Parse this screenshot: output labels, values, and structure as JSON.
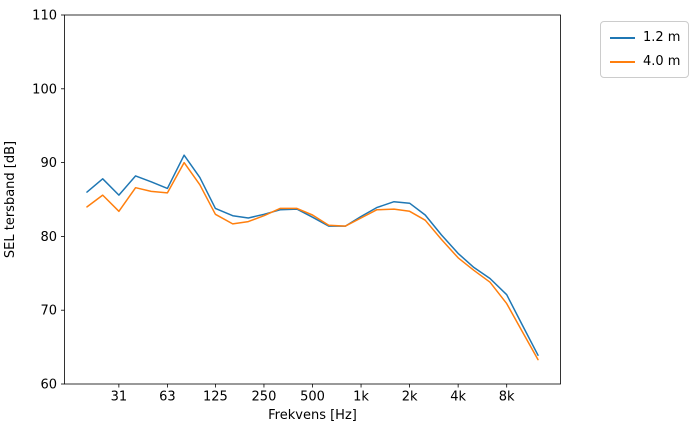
{
  "figure": {
    "background": "#ffffff"
  },
  "legend": {
    "items": [
      {
        "label": "1.2 m",
        "color": "#1f77b4"
      },
      {
        "label": "4.0 m",
        "color": "#ff7f0e"
      }
    ]
  },
  "chart_data": {
    "type": "line",
    "title": "",
    "xlabel": "Frekvens [Hz]",
    "ylabel": "SEL tersband [dB]",
    "x_scale": "log",
    "grid": false,
    "legend_position": "outside upper right",
    "ylim": [
      60,
      110
    ],
    "yticks": [
      60,
      70,
      80,
      90,
      100,
      110
    ],
    "xticks": [
      {
        "value": 31.5,
        "label": "31"
      },
      {
        "value": 63,
        "label": "63"
      },
      {
        "value": 125,
        "label": "125"
      },
      {
        "value": 250,
        "label": "250"
      },
      {
        "value": 500,
        "label": "500"
      },
      {
        "value": 1000,
        "label": "1k"
      },
      {
        "value": 2000,
        "label": "2k"
      },
      {
        "value": 4000,
        "label": "4k"
      },
      {
        "value": 8000,
        "label": "8k"
      }
    ],
    "x": [
      20,
      25,
      31.5,
      40,
      50,
      63,
      80,
      100,
      125,
      160,
      200,
      250,
      315,
      400,
      500,
      630,
      800,
      1000,
      1250,
      1600,
      2000,
      2500,
      3150,
      4000,
      5000,
      6300,
      8000,
      10000,
      12500
    ],
    "series": [
      {
        "name": "1.2 m",
        "color": "#1f77b4",
        "values": [
          86.0,
          87.8,
          85.6,
          88.2,
          87.4,
          86.5,
          91.0,
          88.0,
          83.8,
          82.8,
          82.5,
          83.0,
          83.6,
          83.7,
          82.6,
          81.4,
          81.4,
          82.7,
          83.9,
          84.7,
          84.5,
          82.9,
          80.2,
          77.7,
          75.8,
          74.3,
          72.1,
          68.0,
          63.9
        ]
      },
      {
        "name": "4.0 m",
        "color": "#ff7f0e",
        "values": [
          84.0,
          85.6,
          83.4,
          86.6,
          86.1,
          85.9,
          90.0,
          87.0,
          83.0,
          81.7,
          82.0,
          82.8,
          83.8,
          83.8,
          82.9,
          81.5,
          81.4,
          82.5,
          83.6,
          83.7,
          83.4,
          82.2,
          79.6,
          77.1,
          75.4,
          73.8,
          70.9,
          67.1,
          63.3
        ]
      }
    ]
  }
}
